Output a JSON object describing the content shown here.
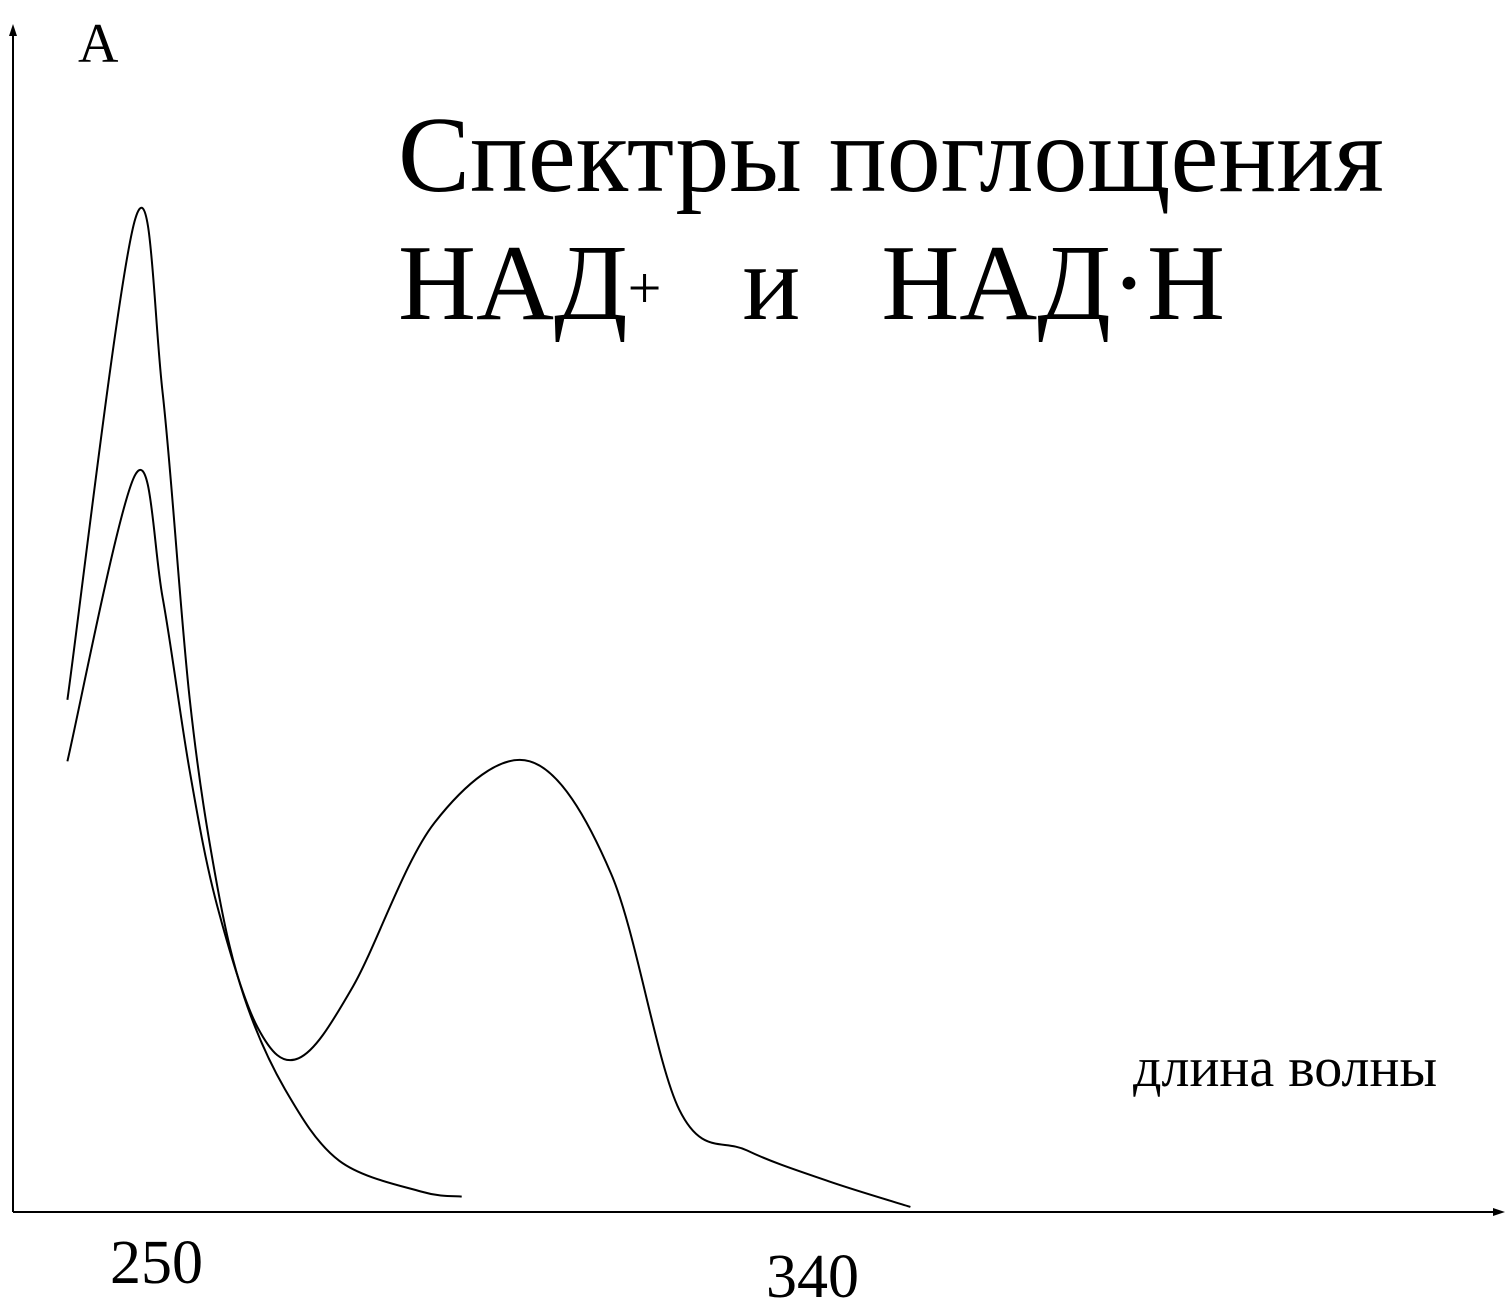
{
  "chart_data": {
    "type": "line",
    "title_line1": "Спектры поглощения",
    "title_line2_a": "НАД",
    "title_line2_sup": "+",
    "title_line2_b": "и",
    "title_line2_c": "НАД",
    "title_line2_dot": "·",
    "title_line2_d": "Н",
    "ylabel": "А",
    "xlabel": "длина волны",
    "ticks": [
      {
        "label": "250",
        "value": 250
      },
      {
        "label": "340",
        "value": 340
      }
    ],
    "xlim": [
      232,
      450
    ],
    "ylim": [
      0,
      1.15
    ],
    "grid": false,
    "series": [
      {
        "points": [
          [
            240,
            0.5
          ],
          [
            250,
            0.97
          ],
          [
            254,
            0.8
          ],
          [
            258,
            0.5
          ],
          [
            262,
            0.32
          ],
          [
            266,
            0.21
          ],
          [
            272,
            0.12
          ],
          [
            280,
            0.05
          ],
          [
            292,
            0.02
          ],
          [
            298,
            0.015
          ]
        ]
      },
      {
        "points": [
          [
            240,
            0.44
          ],
          [
            250,
            0.72
          ],
          [
            254,
            0.6
          ],
          [
            258,
            0.43
          ],
          [
            262,
            0.3
          ],
          [
            268,
            0.18
          ],
          [
            274,
            0.15
          ],
          [
            282,
            0.22
          ],
          [
            294,
            0.38
          ],
          [
            308,
            0.44
          ],
          [
            320,
            0.33
          ],
          [
            330,
            0.1
          ],
          [
            340,
            0.06
          ],
          [
            352,
            0.03
          ],
          [
            364,
            0.005
          ]
        ]
      }
    ]
  }
}
